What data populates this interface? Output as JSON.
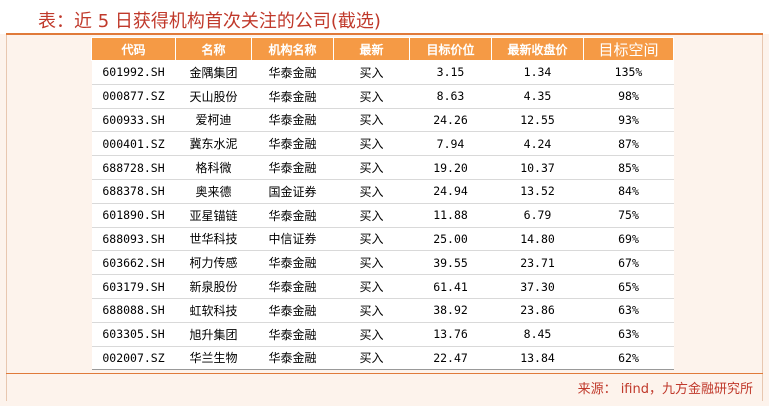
{
  "title": "表：近 5 日获得机构首次关注的公司(截选)",
  "columns": [
    "代码",
    "名称",
    "机构名称",
    "最新",
    "目标价位",
    "最新收盘价",
    "目标空间"
  ],
  "rows": [
    {
      "code": "601992.SH",
      "name": "金隅集团",
      "institution": "华泰金融",
      "rating": "买入",
      "target": "3.15",
      "close": "1.34",
      "upside": "135%"
    },
    {
      "code": "000877.SZ",
      "name": "天山股份",
      "institution": "华泰金融",
      "rating": "买入",
      "target": "8.63",
      "close": "4.35",
      "upside": "98%"
    },
    {
      "code": "600933.SH",
      "name": "爱柯迪",
      "institution": "华泰金融",
      "rating": "买入",
      "target": "24.26",
      "close": "12.55",
      "upside": "93%"
    },
    {
      "code": "000401.SZ",
      "name": "冀东水泥",
      "institution": "华泰金融",
      "rating": "买入",
      "target": "7.94",
      "close": "4.24",
      "upside": "87%"
    },
    {
      "code": "688728.SH",
      "name": "格科微",
      "institution": "华泰金融",
      "rating": "买入",
      "target": "19.20",
      "close": "10.37",
      "upside": "85%"
    },
    {
      "code": "688378.SH",
      "name": "奥来德",
      "institution": "国金证券",
      "rating": "买入",
      "target": "24.94",
      "close": "13.52",
      "upside": "84%"
    },
    {
      "code": "601890.SH",
      "name": "亚星锚链",
      "institution": "华泰金融",
      "rating": "买入",
      "target": "11.88",
      "close": "6.79",
      "upside": "75%"
    },
    {
      "code": "688093.SH",
      "name": "世华科技",
      "institution": "中信证券",
      "rating": "买入",
      "target": "25.00",
      "close": "14.80",
      "upside": "69%"
    },
    {
      "code": "603662.SH",
      "name": "柯力传感",
      "institution": "华泰金融",
      "rating": "买入",
      "target": "39.55",
      "close": "23.71",
      "upside": "67%"
    },
    {
      "code": "603179.SH",
      "name": "新泉股份",
      "institution": "华泰金融",
      "rating": "买入",
      "target": "61.41",
      "close": "37.30",
      "upside": "65%"
    },
    {
      "code": "688088.SH",
      "name": "虹软科技",
      "institution": "华泰金融",
      "rating": "买入",
      "target": "38.92",
      "close": "23.86",
      "upside": "63%"
    },
    {
      "code": "603305.SH",
      "name": "旭升集团",
      "institution": "华泰金融",
      "rating": "买入",
      "target": "13.76",
      "close": "8.45",
      "upside": "63%"
    },
    {
      "code": "002007.SZ",
      "name": "华兰生物",
      "institution": "华泰金融",
      "rating": "买入",
      "target": "22.47",
      "close": "13.84",
      "upside": "62%"
    }
  ],
  "source": "来源： ifind，九方金融研究所",
  "colors": {
    "header_bg": "#f59a45",
    "accent": "#c0392b",
    "rule": "#e07a3a"
  }
}
